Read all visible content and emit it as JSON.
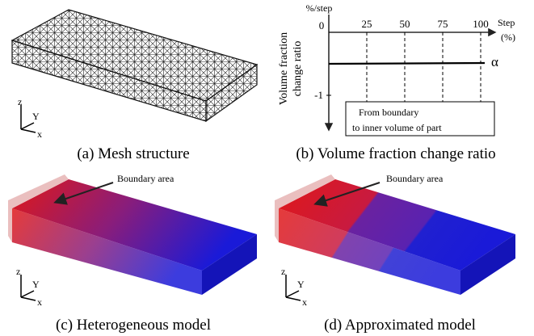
{
  "panels": [
    {
      "caption": "(a) Mesh structure",
      "axes": [
        "z",
        "Y",
        "x"
      ]
    },
    {
      "caption": "(b) Volume fraction change ratio",
      "y_label": [
        "Volume fraction",
        "change ratio"
      ],
      "y_unit": "%/step",
      "x_label": "Step",
      "x_unit": "(%)",
      "x_ticks": [
        0,
        25,
        50,
        75,
        100
      ],
      "y_ticks": [
        0,
        -1
      ],
      "series_label": "α",
      "note": [
        "From boundary",
        "to inner volume of part"
      ]
    },
    {
      "caption": "(c) Heterogeneous model",
      "annotation": "Boundary area",
      "axes": [
        "z",
        "Y",
        "x"
      ]
    },
    {
      "caption": "(d) Approximated model",
      "annotation": "Boundary area",
      "axes": [
        "z",
        "Y",
        "x"
      ]
    }
  ]
}
